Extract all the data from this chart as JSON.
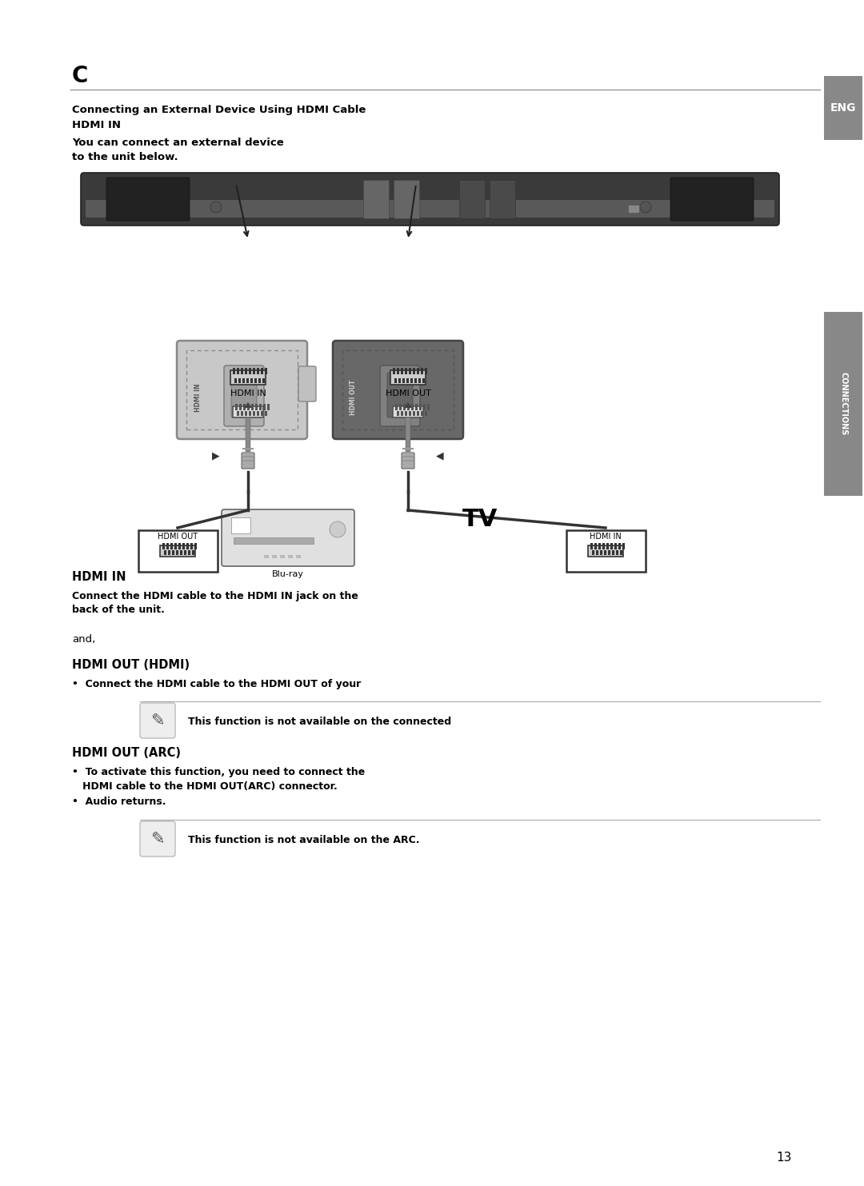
{
  "bg_color": "#ffffff",
  "page_number": "13",
  "title_letter": "C",
  "eng_tab_text": "ENG",
  "connections_tab_text": "CONNECTIONS",
  "header_lines": [
    "Connecting an External Device Using HDMI Cable",
    "HDMI IN",
    "You can connect an external device",
    "to the unit below."
  ],
  "hdmi_in_label": "HDMI IN",
  "hdmi_out_label": "HDMI OUT",
  "hdmi_out_device_label": "HDMI OUT",
  "hdmi_in_tv_label": "HDMI IN",
  "blu_ray_label": "Blu-ray",
  "tv_label": "TV",
  "section_hdmi_in_title": "HDMI IN",
  "section_hdmi_in_text1": "Connect the HDMI cable to the HDMI IN jack on the",
  "section_hdmi_in_text2": "back of the unit.",
  "section_and": "and,",
  "section_hdmi_out_title": "HDMI OUT (HDMI)",
  "section_hdmi_out_text": "•  Connect the HDMI cable to the HDMI OUT of your",
  "note1_text": "This function is not available on the connected",
  "section_hdmi_arc_title": "HDMI OUT (ARC)",
  "section_hdmi_arc_text1": "•  To activate this function, you need to connect the",
  "section_hdmi_arc_text2": "   HDMI cable to the HDMI OUT(ARC) connector.",
  "section_hdmi_arc_text3": "•  Audio returns.",
  "note2_text": "This function is not available on the ARC.",
  "colors": {
    "black": "#000000",
    "dark_gray": "#333333",
    "medium_gray": "#666666",
    "light_gray": "#aaaaaa",
    "tab_gray": "#888888",
    "device_bg": "#d0d0d0",
    "hdmi_out_bg": "#555555",
    "line_color": "#999999",
    "note_line": "#aaaaaa"
  }
}
